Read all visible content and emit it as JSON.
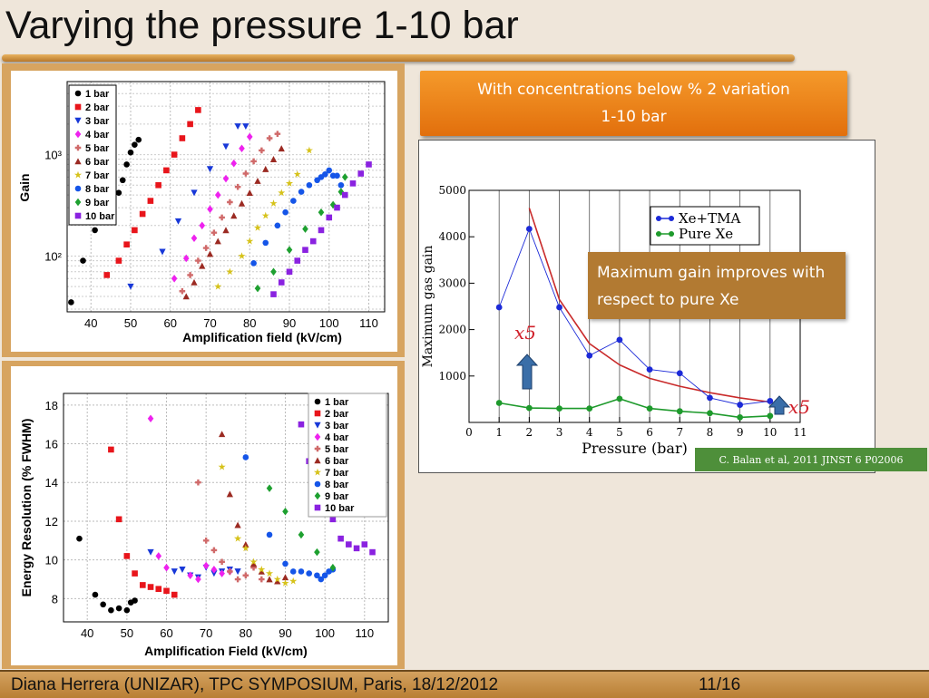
{
  "title": "Varying the pressure 1-10 bar",
  "orange_box": {
    "line1": "With concentrations below  % 2 variation",
    "line2": "1-10 bar"
  },
  "callout": {
    "text": "Maximum  gain  improves with respect to pure Xe"
  },
  "citation": "C. Balan  et al, 2011 JINST 6 P02006",
  "footer": {
    "text": "Diana Herrera (UNIZAR), TPC SYMPOSIUM, Paris, 18/12/2012",
    "page": "11/16"
  },
  "annotations": {
    "left": "x5",
    "right": "x5"
  },
  "pressure_legend": [
    "1 bar",
    "2 bar",
    "3 bar",
    "4 bar",
    "5 bar",
    "6 bar",
    "7 bar",
    "8 bar",
    "9 bar",
    "10 bar"
  ],
  "colors": {
    "series": [
      "#000000",
      "#e8151b",
      "#1838d8",
      "#ee22ee",
      "#d06a6a",
      "#9b2a22",
      "#d6c21a",
      "#1555e8",
      "#1ea030",
      "#8a22e0"
    ]
  },
  "chart_data": [
    {
      "type": "scatter",
      "xlabel": "Amplification field (kV/cm)",
      "ylabel": "Gain",
      "xlim": [
        34,
        114
      ],
      "ylim_log10": [
        1.45,
        3.72
      ],
      "log_y": true,
      "yticks": [
        "10²",
        "10³"
      ],
      "xticks": [
        40,
        50,
        60,
        70,
        80,
        90,
        100,
        110
      ],
      "legend_position": "top-left",
      "series": [
        {
          "name": "1 bar",
          "marker": "circle",
          "points": [
            [
              35,
              35
            ],
            [
              38,
              90
            ],
            [
              41,
              180
            ],
            [
              43,
              240
            ],
            [
              45,
              300
            ],
            [
              47,
              420
            ],
            [
              48,
              560
            ],
            [
              49,
              800
            ],
            [
              50,
              1050
            ],
            [
              51,
              1250
            ],
            [
              52,
              1400
            ]
          ]
        },
        {
          "name": "2 bar",
          "marker": "square",
          "points": [
            [
              44,
              65
            ],
            [
              47,
              90
            ],
            [
              49,
              130
            ],
            [
              51,
              180
            ],
            [
              53,
              260
            ],
            [
              55,
              350
            ],
            [
              57,
              500
            ],
            [
              59,
              700
            ],
            [
              61,
              1000
            ],
            [
              63,
              1450
            ],
            [
              65,
              2000
            ],
            [
              67,
              2750
            ]
          ]
        },
        {
          "name": "3 bar",
          "marker": "triangle-down",
          "points": [
            [
              50,
              50
            ],
            [
              58,
              110
            ],
            [
              62,
              220
            ],
            [
              66,
              420
            ],
            [
              70,
              720
            ],
            [
              74,
              1200
            ],
            [
              77,
              1900
            ],
            [
              79,
              1900
            ]
          ]
        },
        {
          "name": "4 bar",
          "marker": "diamond",
          "points": [
            [
              61,
              60
            ],
            [
              64,
              95
            ],
            [
              66,
              150
            ],
            [
              68,
              200
            ],
            [
              70,
              290
            ],
            [
              72,
              400
            ],
            [
              74,
              580
            ],
            [
              76,
              820
            ],
            [
              78,
              1150
            ],
            [
              80,
              1500
            ]
          ]
        },
        {
          "name": "5 bar",
          "marker": "plus",
          "points": [
            [
              63,
              45
            ],
            [
              65,
              65
            ],
            [
              67,
              90
            ],
            [
              69,
              120
            ],
            [
              71,
              170
            ],
            [
              73,
              240
            ],
            [
              75,
              340
            ],
            [
              77,
              480
            ],
            [
              79,
              650
            ],
            [
              81,
              860
            ],
            [
              83,
              1100
            ],
            [
              85,
              1450
            ],
            [
              87,
              1600
            ]
          ]
        },
        {
          "name": "6 bar",
          "marker": "triangle-up",
          "points": [
            [
              64,
              40
            ],
            [
              66,
              55
            ],
            [
              68,
              80
            ],
            [
              70,
              105
            ],
            [
              72,
              140
            ],
            [
              74,
              180
            ],
            [
              76,
              250
            ],
            [
              78,
              330
            ],
            [
              80,
              420
            ],
            [
              82,
              550
            ],
            [
              84,
              720
            ],
            [
              86,
              900
            ],
            [
              88,
              1150
            ]
          ]
        },
        {
          "name": "7 bar",
          "marker": "star",
          "points": [
            [
              72,
              50
            ],
            [
              75,
              70
            ],
            [
              78,
              100
            ],
            [
              80,
              140
            ],
            [
              82,
              190
            ],
            [
              84,
              250
            ],
            [
              86,
              330
            ],
            [
              88,
              420
            ],
            [
              90,
              520
            ],
            [
              92,
              640
            ],
            [
              95,
              1100
            ]
          ]
        },
        {
          "name": "8 bar",
          "marker": "circle",
          "points": [
            [
              81,
              85
            ],
            [
              84,
              135
            ],
            [
              87,
              200
            ],
            [
              89,
              270
            ],
            [
              91,
              350
            ],
            [
              93,
              430
            ],
            [
              95,
              500
            ],
            [
              97,
              560
            ],
            [
              98,
              600
            ],
            [
              99,
              640
            ],
            [
              100,
              700
            ],
            [
              101,
              620
            ],
            [
              102,
              620
            ],
            [
              103,
              500
            ]
          ]
        },
        {
          "name": "9 bar",
          "marker": "diamond",
          "points": [
            [
              82,
              48
            ],
            [
              86,
              70
            ],
            [
              90,
              115
            ],
            [
              94,
              185
            ],
            [
              98,
              270
            ],
            [
              101,
              320
            ],
            [
              103,
              430
            ],
            [
              104,
              600
            ]
          ]
        },
        {
          "name": "10 bar",
          "marker": "square",
          "points": [
            [
              86,
              42
            ],
            [
              88,
              55
            ],
            [
              90,
              70
            ],
            [
              92,
              90
            ],
            [
              94,
              115
            ],
            [
              96,
              140
            ],
            [
              98,
              180
            ],
            [
              100,
              240
            ],
            [
              102,
              300
            ],
            [
              104,
              400
            ],
            [
              106,
              520
            ],
            [
              108,
              650
            ],
            [
              110,
              800
            ]
          ]
        }
      ]
    },
    {
      "type": "scatter",
      "xlabel": "Amplification Field (kV/cm)",
      "ylabel": "Energy Resolution (% FWHM)",
      "xlim": [
        34,
        116
      ],
      "ylim": [
        6.8,
        18.6
      ],
      "xticks": [
        40,
        50,
        60,
        70,
        80,
        90,
        100,
        110
      ],
      "yticks": [
        8,
        10,
        12,
        14,
        16,
        18
      ],
      "legend_position": "top-right",
      "series": [
        {
          "name": "1 bar",
          "marker": "circle",
          "points": [
            [
              38,
              11.1
            ],
            [
              42,
              8.2
            ],
            [
              44,
              7.7
            ],
            [
              46,
              7.4
            ],
            [
              48,
              7.5
            ],
            [
              50,
              7.4
            ],
            [
              51,
              7.8
            ],
            [
              52,
              7.9
            ]
          ]
        },
        {
          "name": "2 bar",
          "marker": "square",
          "points": [
            [
              46,
              15.7
            ],
            [
              48,
              12.1
            ],
            [
              50,
              10.2
            ],
            [
              52,
              9.3
            ],
            [
              54,
              8.7
            ],
            [
              56,
              8.6
            ],
            [
              58,
              8.5
            ],
            [
              60,
              8.4
            ],
            [
              62,
              8.2
            ]
          ]
        },
        {
          "name": "3 bar",
          "marker": "triangle-down",
          "points": [
            [
              56,
              10.4
            ],
            [
              62,
              9.4
            ],
            [
              64,
              9.5
            ],
            [
              66,
              9.2
            ],
            [
              68,
              9.1
            ],
            [
              70,
              9.6
            ],
            [
              72,
              9.3
            ],
            [
              74,
              9.4
            ],
            [
              76,
              9.5
            ],
            [
              78,
              9.4
            ]
          ]
        },
        {
          "name": "4 bar",
          "marker": "diamond",
          "points": [
            [
              56,
              17.3
            ],
            [
              58,
              10.2
            ],
            [
              60,
              9.6
            ],
            [
              66,
              9.2
            ],
            [
              68,
              9.0
            ],
            [
              70,
              9.7
            ],
            [
              72,
              9.5
            ],
            [
              74,
              9.3
            ],
            [
              76,
              9.4
            ]
          ]
        },
        {
          "name": "5 bar",
          "marker": "plus",
          "points": [
            [
              68,
              14.0
            ],
            [
              70,
              11.0
            ],
            [
              72,
              10.5
            ],
            [
              74,
              9.9
            ],
            [
              76,
              9.4
            ],
            [
              78,
              9.0
            ],
            [
              80,
              9.2
            ],
            [
              82,
              9.6
            ],
            [
              84,
              9.0
            ]
          ]
        },
        {
          "name": "6 bar",
          "marker": "triangle-up",
          "points": [
            [
              74,
              16.5
            ],
            [
              76,
              13.4
            ],
            [
              78,
              11.8
            ],
            [
              80,
              10.8
            ],
            [
              82,
              9.8
            ],
            [
              84,
              9.4
            ],
            [
              86,
              9.0
            ],
            [
              88,
              8.9
            ],
            [
              90,
              9.1
            ]
          ]
        },
        {
          "name": "7 bar",
          "marker": "star",
          "points": [
            [
              74,
              14.8
            ],
            [
              78,
              11.1
            ],
            [
              80,
              10.6
            ],
            [
              82,
              9.9
            ],
            [
              84,
              9.5
            ],
            [
              86,
              9.3
            ],
            [
              88,
              9.0
            ],
            [
              90,
              8.8
            ],
            [
              92,
              8.9
            ]
          ]
        },
        {
          "name": "8 bar",
          "marker": "circle",
          "points": [
            [
              80,
              15.3
            ],
            [
              86,
              11.3
            ],
            [
              90,
              9.8
            ],
            [
              92,
              9.4
            ],
            [
              94,
              9.4
            ],
            [
              96,
              9.3
            ],
            [
              98,
              9.2
            ],
            [
              99,
              9.0
            ],
            [
              100,
              9.2
            ],
            [
              101,
              9.4
            ],
            [
              102,
              9.5
            ]
          ]
        },
        {
          "name": "9 bar",
          "marker": "diamond",
          "points": [
            [
              86,
              13.7
            ],
            [
              90,
              12.5
            ],
            [
              94,
              11.3
            ],
            [
              98,
              10.4
            ],
            [
              102,
              9.6
            ]
          ]
        },
        {
          "name": "10 bar",
          "marker": "square",
          "points": [
            [
              94,
              17.0
            ],
            [
              96,
              15.1
            ],
            [
              98,
              13.6
            ],
            [
              100,
              12.4
            ],
            [
              102,
              12.1
            ],
            [
              104,
              11.1
            ],
            [
              106,
              10.8
            ],
            [
              108,
              10.6
            ],
            [
              110,
              10.8
            ],
            [
              112,
              10.4
            ]
          ]
        }
      ]
    },
    {
      "type": "line",
      "xlabel": "Pressure (bar)",
      "ylabel": "Maximum gas gain",
      "xlim": [
        0,
        11
      ],
      "ylim": [
        0,
        5000
      ],
      "xticks": [
        0,
        1,
        2,
        3,
        4,
        5,
        6,
        7,
        8,
        9,
        10,
        11
      ],
      "yticks": [
        1000,
        2000,
        3000,
        4000,
        5000
      ],
      "legend_position": "top-right",
      "grid_x": true,
      "series": [
        {
          "name": "Xe+TMA",
          "color": "#1c2ad8",
          "x": [
            1,
            2,
            3,
            4,
            5,
            6,
            7,
            8,
            9,
            10
          ],
          "values": [
            2480,
            4170,
            2480,
            1440,
            1780,
            1140,
            1060,
            530,
            380,
            460
          ]
        },
        {
          "name": "Pure Xe",
          "color": "#1e9a2c",
          "x": [
            1,
            2,
            3,
            4,
            5,
            6,
            7,
            8,
            9,
            10
          ],
          "values": [
            420,
            310,
            300,
            300,
            510,
            300,
            240,
            200,
            110,
            140
          ]
        },
        {
          "name": "",
          "color": "#c92a2a",
          "x": [
            2,
            3,
            4,
            5,
            6,
            7,
            8,
            9,
            10
          ],
          "values": [
            4620,
            2650,
            1700,
            1240,
            950,
            780,
            640,
            530,
            440
          ]
        }
      ]
    }
  ]
}
